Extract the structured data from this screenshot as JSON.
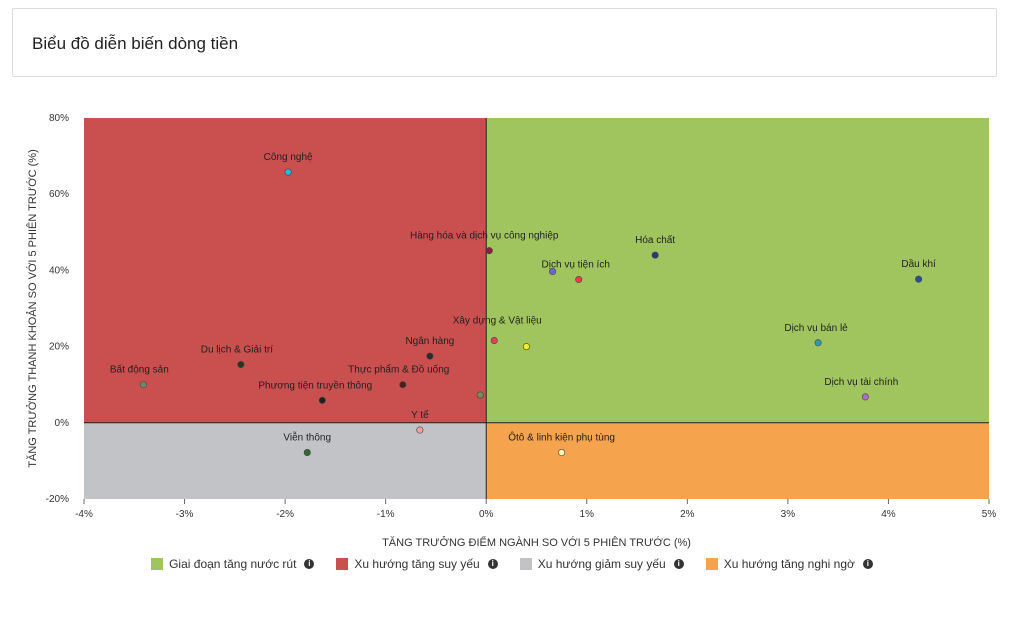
{
  "header": {
    "title": "Biểu đồ diễn biến dòng tiền"
  },
  "chart_data": {
    "type": "scatter",
    "xlabel": "TĂNG TRƯỞNG ĐIỂM NGÀNH SO VỚI 5 PHIÊN TRƯỚC (%)",
    "ylabel": "TĂNG TRƯỞNG THANH KHOẢN SO VỚI 5 PHIÊN TRƯỚC (%)",
    "xlim": [
      -4,
      5
    ],
    "ylim": [
      -20,
      80
    ],
    "x_ticks": [
      -4,
      -3,
      -2,
      -1,
      0,
      1,
      2,
      3,
      4,
      5
    ],
    "y_ticks": [
      -20,
      0,
      20,
      40,
      60,
      80
    ],
    "x_tick_labels": [
      "-4%",
      "-3%",
      "-2%",
      "-1%",
      "0%",
      "1%",
      "2%",
      "3%",
      "4%",
      "5%"
    ],
    "y_tick_labels": [
      "-20%",
      "0%",
      "20%",
      "40%",
      "60%",
      "80%"
    ],
    "quadrants": [
      {
        "label": "Giai đoạn tăng nước rút",
        "color": "#a0c55f",
        "x": [
          0,
          5
        ],
        "y": [
          0,
          80
        ]
      },
      {
        "label": "Xu hướng tăng suy yếu",
        "color": "#c9504e",
        "x": [
          -4,
          0
        ],
        "y": [
          0,
          80
        ]
      },
      {
        "label": "Xu hướng giảm suy yếu",
        "color": "#c2c3c7",
        "x": [
          -4,
          0
        ],
        "y": [
          -20,
          0
        ]
      },
      {
        "label": "Xu hướng tăng nghi ngờ",
        "color": "#f6a34e",
        "x": [
          0,
          5
        ],
        "y": [
          -20,
          0
        ]
      }
    ],
    "points": [
      {
        "label": "Công nghệ",
        "x": -1.97,
        "y": 65.8,
        "color": "#29b6e8",
        "label_dx": 0,
        "label_dy": -12
      },
      {
        "label": "Hàng hóa và dịch vụ công nghiệp",
        "x": 0.03,
        "y": 45.2,
        "color": "#8e1e3c",
        "label_dx": -5,
        "label_dy": -12
      },
      {
        "label": "Hóa chất",
        "x": 1.68,
        "y": 44.0,
        "color": "#2c3a7a",
        "label_dx": 0,
        "label_dy": -12
      },
      {
        "label": "Dịch vụ tiện ích",
        "x": 0.92,
        "y": 37.6,
        "color": "#e83e45",
        "label_dx": -3,
        "label_dy": -12
      },
      {
        "label": "",
        "x": 0.66,
        "y": 39.7,
        "color": "#6a66d6",
        "label_dx": 0,
        "label_dy": 0
      },
      {
        "label": "Dầu khí",
        "x": 4.3,
        "y": 37.7,
        "color": "#2a4e9c",
        "label_dx": 0,
        "label_dy": -12
      },
      {
        "label": "Xây dựng & Vật liệu",
        "x": 0.08,
        "y": 21.6,
        "color": "#e83e62",
        "label_dx": 3,
        "label_dy": -17
      },
      {
        "label": "",
        "x": 0.4,
        "y": 20.0,
        "color": "#f2ee2a",
        "label_dx": 0,
        "label_dy": 0
      },
      {
        "label": "Dịch vụ bán lẻ",
        "x": 3.3,
        "y": 21.0,
        "color": "#2f9bb0",
        "label_dx": -2,
        "label_dy": -12
      },
      {
        "label": "Ngân hàng",
        "x": -0.56,
        "y": 17.5,
        "color": "#2a2a2a",
        "label_dx": 0,
        "label_dy": -12
      },
      {
        "label": "Du lịch & Giải trí",
        "x": -2.44,
        "y": 15.3,
        "color": "#1f3a20",
        "label_dx": -4,
        "label_dy": -12
      },
      {
        "label": "Thực phẩm & Đồ uống",
        "x": -0.83,
        "y": 10.0,
        "color": "#4a1f1c",
        "label_dx": -4,
        "label_dy": -12
      },
      {
        "label": "Bất động sản",
        "x": -3.41,
        "y": 10.0,
        "color": "#6a8a6a",
        "label_dx": -4,
        "label_dy": -12
      },
      {
        "label": "Phương tiện truyền thông",
        "x": -1.63,
        "y": 5.9,
        "color": "#222222",
        "label_dx": -7,
        "label_dy": -12
      },
      {
        "label": "",
        "x": -0.06,
        "y": 7.3,
        "color": "#7a8a5a",
        "label_dx": 0,
        "label_dy": 0
      },
      {
        "label": "Dịch vụ tài chính",
        "x": 3.77,
        "y": 6.8,
        "color": "#b06ad0",
        "label_dx": -4,
        "label_dy": -12
      },
      {
        "label": "Y tế",
        "x": -0.66,
        "y": -1.9,
        "color": "#f2a09a",
        "label_dx": 0,
        "label_dy": -12
      },
      {
        "label": "Viễn thông",
        "x": -1.78,
        "y": -7.8,
        "color": "#2f6a30",
        "label_dx": 0,
        "label_dy": -12
      },
      {
        "label": "Ôtô & linh kiện phụ tùng",
        "x": 0.75,
        "y": -7.8,
        "color": "#f8f2c0",
        "label_dx": 0,
        "label_dy": -12
      }
    ],
    "legend": {
      "placement": "bottom",
      "info_icon": "info-circle-icon",
      "entries": [
        {
          "label": "Giai đoạn tăng nước rút",
          "color": "#a0c55f"
        },
        {
          "label": "Xu hướng tăng suy yếu",
          "color": "#c9504e"
        },
        {
          "label": "Xu hướng giảm suy yếu",
          "color": "#c2c3c7"
        },
        {
          "label": "Xu hướng tăng nghi ngờ",
          "color": "#f6a34e"
        }
      ]
    }
  }
}
